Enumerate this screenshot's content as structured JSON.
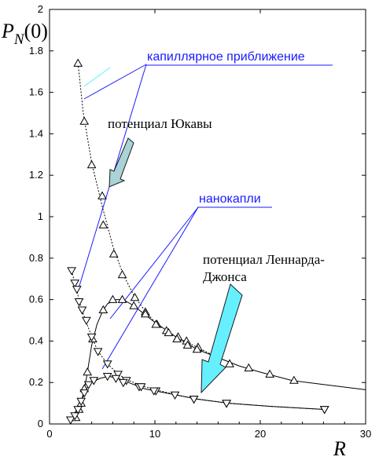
{
  "chart_data": {
    "type": "scatter",
    "title": "",
    "xlabel": "R",
    "ylabel": "P_N(0)",
    "ylabel_main": "P",
    "ylabel_sub": "N",
    "ylabel_arg": "(0)",
    "xlim": [
      0,
      30
    ],
    "ylim": [
      0,
      2
    ],
    "x_ticks": [
      0,
      10,
      20,
      30
    ],
    "x_tick_labels": [
      "0",
      "10",
      "20",
      "30"
    ],
    "y_ticks": [
      0,
      0.2,
      0.4,
      0.6,
      0.8,
      1,
      1.2,
      1.4,
      1.6,
      1.8,
      2
    ],
    "y_tick_labels": [
      "0",
      "0.2",
      "0.4",
      "0.6",
      "0.8",
      "1",
      "1.2",
      "1.4",
      "1.6",
      "1.8",
      "2"
    ],
    "grid": false,
    "series": [
      {
        "marker": "triangle-up",
        "line_style": "dotted",
        "points": [
          [
            2.7,
            1.74
          ],
          [
            3.3,
            1.46
          ],
          [
            4.0,
            1.25
          ],
          [
            5.0,
            1.1
          ],
          [
            5.1,
            0.96
          ],
          [
            6.1,
            0.82
          ],
          [
            6.9,
            0.72
          ],
          [
            8.1,
            0.61
          ],
          [
            9.1,
            0.54
          ],
          [
            10.2,
            0.48
          ],
          [
            11.1,
            0.45
          ],
          [
            12.2,
            0.42
          ],
          [
            13.0,
            0.4
          ],
          [
            14.1,
            0.37
          ],
          [
            15.9,
            0.32
          ]
        ]
      },
      {
        "marker": "triangle-up",
        "line_style": "solid",
        "points": [
          [
            2.5,
            0.03
          ],
          [
            2.8,
            0.07
          ],
          [
            3.0,
            0.1
          ],
          [
            3.3,
            0.17
          ],
          [
            3.6,
            0.25
          ],
          [
            4.1,
            0.41
          ],
          [
            5.1,
            0.55
          ],
          [
            6.0,
            0.6
          ],
          [
            6.9,
            0.6
          ],
          [
            8.0,
            0.57
          ],
          [
            9.1,
            0.53
          ],
          [
            10.1,
            0.48
          ],
          [
            11.3,
            0.44
          ],
          [
            12.1,
            0.41
          ],
          [
            13.1,
            0.38
          ],
          [
            14.0,
            0.36
          ],
          [
            15.9,
            0.32
          ],
          [
            17.1,
            0.29
          ],
          [
            18.9,
            0.27
          ],
          [
            20.9,
            0.24
          ],
          [
            23.2,
            0.21
          ]
        ]
      },
      {
        "marker": "triangle-down",
        "line_style": "dotted",
        "points": [
          [
            2.1,
            0.74
          ],
          [
            2.4,
            0.68
          ],
          [
            2.6,
            0.65
          ],
          [
            2.8,
            0.59
          ],
          [
            3.1,
            0.55
          ],
          [
            3.5,
            0.5
          ],
          [
            4.0,
            0.42
          ],
          [
            4.6,
            0.35
          ],
          [
            5.5,
            0.29
          ],
          [
            6.5,
            0.24
          ],
          [
            7.3,
            0.21
          ],
          [
            8.5,
            0.18
          ],
          [
            10.1,
            0.16
          ],
          [
            13.7,
            0.12
          ],
          [
            16.8,
            0.1
          ],
          [
            26.1,
            0.07
          ]
        ]
      },
      {
        "marker": "triangle-down",
        "line_style": "solid",
        "points": [
          [
            2.0,
            0.02
          ],
          [
            2.4,
            0.04
          ],
          [
            2.7,
            0.07
          ],
          [
            3.0,
            0.11
          ],
          [
            3.3,
            0.15
          ],
          [
            3.7,
            0.19
          ],
          [
            4.2,
            0.21
          ],
          [
            5.5,
            0.23
          ],
          [
            6.3,
            0.22
          ],
          [
            7.0,
            0.2
          ],
          [
            8.7,
            0.18
          ],
          [
            9.9,
            0.16
          ],
          [
            11.9,
            0.14
          ],
          [
            13.7,
            0.12
          ],
          [
            16.8,
            0.1
          ],
          [
            26.1,
            0.07
          ]
        ]
      }
    ],
    "annotations": [
      {
        "text": "капиллярное приближение",
        "color": "#1a1aff"
      },
      {
        "text": "потенциал Юкавы",
        "color": "#000000"
      },
      {
        "text": "нанокапли",
        "color": "#1a1aff"
      },
      {
        "text": "потенциал Леннарда-",
        "color": "#000000"
      },
      {
        "text": "Джонса",
        "color": "#000000"
      }
    ],
    "colors": {
      "axis": "#000000",
      "data": "#000000",
      "guide_lines": "#1a1aff",
      "capillary_segment": "#7ff0ff",
      "arrow_yukawa_fill": "#a9d3d6",
      "arrow_lj_fill": "#66f0ff",
      "arrow_stroke": "#1a1a1a"
    }
  }
}
